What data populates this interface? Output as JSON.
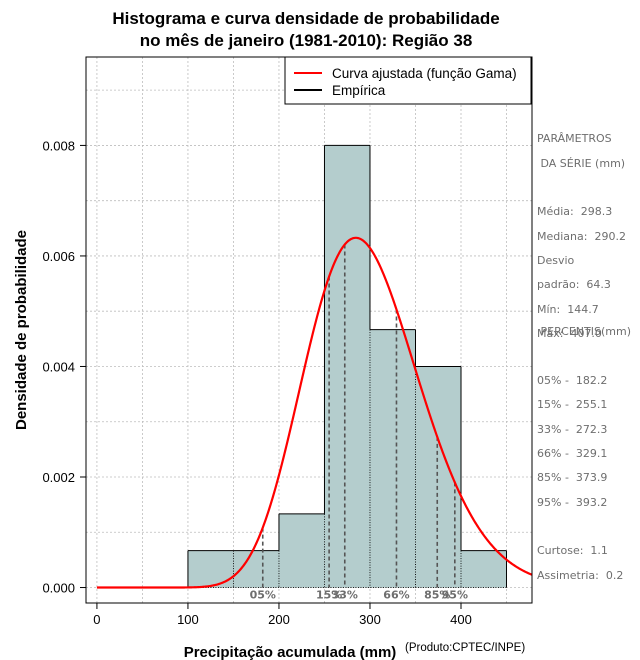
{
  "chart_data": {
    "type": "bar",
    "title_line1": "Histograma e curva densidade de probabilidade",
    "title_line2": "no mês de janeiro (1981-2010): Região 38",
    "xlabel": "Precipitação acumulada (mm)",
    "ylabel": "Densidade de probabilidade",
    "credit": "(Produto:CPTEC/INPE)",
    "xlim": [
      -12,
      478
    ],
    "ylim": [
      -0.00028,
      0.0096
    ],
    "x_ticks": [
      0,
      100,
      200,
      300,
      400
    ],
    "y_ticks": [
      0.0,
      0.002,
      0.004,
      0.006,
      0.008
    ],
    "y_tick_labels": [
      "0.000",
      "0.002",
      "0.004",
      "0.006",
      "0.008"
    ],
    "grid": true,
    "legend_position": "top-right",
    "legend": [
      {
        "label": "Curva ajustada (função Gama)",
        "color": "#ff0000"
      },
      {
        "label": "Empírica",
        "color": "#000000"
      }
    ],
    "bar_color": "#b4cdcd",
    "bins": [
      {
        "start": 100,
        "end": 150,
        "density": 0.000667
      },
      {
        "start": 150,
        "end": 200,
        "density": 0.000667
      },
      {
        "start": 200,
        "end": 250,
        "density": 0.001333
      },
      {
        "start": 250,
        "end": 300,
        "density": 0.008
      },
      {
        "start": 300,
        "end": 350,
        "density": 0.004667
      },
      {
        "start": 350,
        "end": 400,
        "density": 0.004
      },
      {
        "start": 400,
        "end": 450,
        "density": 0.000667
      }
    ],
    "gamma_fit": {
      "mean": 298.3,
      "sd": 64.3,
      "color": "#ff0000"
    },
    "percentile_lines": [
      {
        "label": "05%",
        "value": 182.2
      },
      {
        "label": "15%",
        "value": 255.1
      },
      {
        "label": "33%",
        "value": 272.3
      },
      {
        "label": "66%",
        "value": 329.1
      },
      {
        "label": "85%",
        "value": 373.9
      },
      {
        "label": "95%",
        "value": 393.2
      }
    ]
  },
  "params": {
    "heading1": "PARÂMETROS",
    "heading2": " DA SÉRIE (mm)",
    "media": "Média:  298.3",
    "mediana": "Mediana:  290.2",
    "desvio": "Desvio",
    "padrao": "padrão:  64.3",
    "min": "Mín:  144.7",
    "max": "Máx:  407.0"
  },
  "percentis": {
    "heading": " PERCENTIS(mm)",
    "p05": "05% -  182.2",
    "p15": "15% -  255.1",
    "p33": "33% -  272.3",
    "p66": "66% -  329.1",
    "p85": "85% -  373.9",
    "p95": "95% -  393.2",
    "curtose": "Curtose:  1.1",
    "assimetria": "Assimetria:  0.2"
  }
}
